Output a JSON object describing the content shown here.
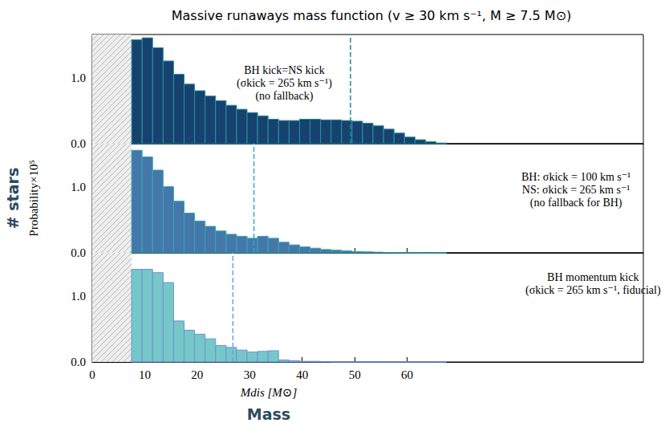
{
  "figure": {
    "title": "Massive runaways mass function (v ≥ 30 km s⁻¹, M ≥ 7.5 M⊙)",
    "xlabel": "Mdis [M⊙]",
    "ylabel": "Probability×10⁵",
    "outer_xlabel": "Mass",
    "outer_ylabel": "# stars"
  },
  "chart_data": [
    {
      "type": "histogram",
      "annotation": [
        "BH kick=NS kick",
        "(σkick = 265 km s⁻¹)",
        "(no fallback)"
      ],
      "bins": [
        7.5,
        9.5,
        11.5,
        13.5,
        15.5,
        17.5,
        19.5,
        21.5,
        23.5,
        25.5,
        27.5,
        29.5,
        31.5,
        33.5,
        35.5,
        37.5,
        39.5,
        41.5,
        43.5,
        45.5,
        47.5,
        49.5,
        51.5,
        53.5,
        55.5,
        57.5,
        59.5,
        61.5,
        63.5,
        65.5,
        67.5
      ],
      "counts": [
        1.57,
        1.6,
        1.45,
        1.25,
        1.05,
        0.9,
        0.8,
        0.72,
        0.65,
        0.58,
        0.52,
        0.47,
        0.42,
        0.37,
        0.35,
        0.35,
        0.37,
        0.37,
        0.36,
        0.36,
        0.35,
        0.34,
        0.31,
        0.27,
        0.22,
        0.16,
        0.1,
        0.06,
        0.03,
        0.01
      ],
      "color": "#15426f",
      "mean": 49.2,
      "mass_cut": 7.5,
      "xlim": [
        0,
        105
      ],
      "xticks": [
        0,
        10,
        20,
        30,
        40,
        50,
        60
      ],
      "ylim": [
        0,
        1.65
      ],
      "yticks": [
        {
          "value": 0,
          "label": "0.0"
        },
        {
          "value": 1,
          "label": "1.0"
        }
      ],
      "tick_labels": "y"
    },
    {
      "type": "histogram",
      "annotation": [
        "BH: σkick = 100 km s⁻¹",
        "NS: σkick = 265 km s⁻¹",
        "(no fallback for BH)"
      ],
      "bins": [
        7.5,
        9.5,
        11.5,
        13.5,
        15.5,
        17.5,
        19.5,
        21.5,
        23.5,
        25.5,
        27.5,
        29.5,
        31.5,
        33.5,
        35.5,
        37.5,
        39.5,
        41.5,
        43.5,
        45.5,
        47.5,
        49.5,
        51.5,
        53.5,
        55.5,
        57.5,
        59.5,
        61.5,
        63.5,
        65.5,
        67.5
      ],
      "counts": [
        1.55,
        1.45,
        1.25,
        1.0,
        0.78,
        0.6,
        0.48,
        0.4,
        0.33,
        0.28,
        0.25,
        0.22,
        0.25,
        0.22,
        0.16,
        0.12,
        0.09,
        0.07,
        0.05,
        0.04,
        0.03,
        0.02,
        0.015,
        0.01,
        0.005,
        0.003,
        0.002,
        0.001,
        0,
        0
      ],
      "color": "#4477aa",
      "mean": 30.8,
      "mass_cut": 7.5,
      "xlim": [
        0,
        105
      ],
      "xticks": [
        0,
        10,
        20,
        30,
        40,
        50,
        60
      ],
      "ylim": [
        0,
        1.65
      ],
      "yticks": [
        {
          "value": 0,
          "label": "0.0"
        },
        {
          "value": 1,
          "label": "1.0"
        }
      ],
      "tick_labels": "y"
    },
    {
      "type": "histogram",
      "annotation": [
        "BH momentum kick",
        "(σkick = 265 km s⁻¹, fiducial)"
      ],
      "bins": [
        7.5,
        9.5,
        11.5,
        13.5,
        15.5,
        17.5,
        19.5,
        21.5,
        23.5,
        25.5,
        27.5,
        29.5,
        31.5,
        33.5,
        35.5,
        37.5,
        39.5,
        41.5,
        43.5,
        45.5,
        47.5,
        49.5,
        51.5,
        53.5,
        55.5,
        57.5,
        59.5,
        61.5,
        63.5,
        65.5,
        67.5
      ],
      "counts": [
        1.4,
        1.4,
        1.35,
        1.2,
        0.62,
        0.48,
        0.42,
        0.35,
        0.25,
        0.22,
        0.18,
        0.15,
        0.16,
        0.17,
        0.03,
        0.02,
        0.01,
        0.01,
        0.005,
        0,
        0,
        0,
        0,
        0,
        0,
        0,
        0,
        0,
        0,
        0
      ],
      "color": "#76c8c8",
      "mean": 26.8,
      "mass_cut": 7.5,
      "xlim": [
        0,
        105
      ],
      "xticks": [
        0,
        10,
        20,
        30,
        40,
        50,
        60
      ],
      "ylim": [
        0,
        1.65
      ],
      "yticks": [
        {
          "value": 0,
          "label": "0.0"
        },
        {
          "value": 1,
          "label": "1.0"
        }
      ]
    }
  ]
}
